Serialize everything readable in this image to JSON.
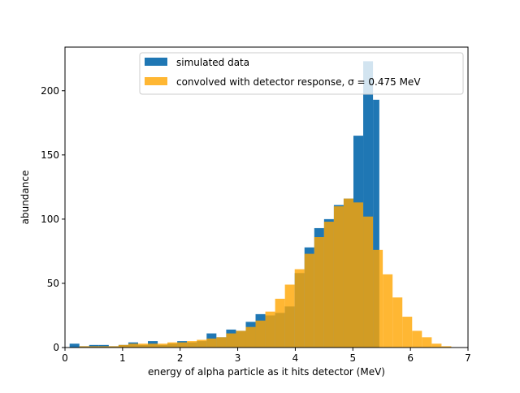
{
  "chart_data": {
    "type": "bar",
    "xlabel": "energy of alpha particle as it hits detector (MeV)",
    "ylabel": "abundance",
    "xlim": [
      0,
      7
    ],
    "ylim": [
      0,
      234
    ],
    "xticks": [
      0,
      1,
      2,
      3,
      4,
      5,
      6,
      7
    ],
    "yticks": [
      0,
      50,
      100,
      150,
      200
    ],
    "grid": false,
    "legend_position": "top-center",
    "legend": [
      {
        "label": "simulated data",
        "color": "#1f77b4"
      },
      {
        "label": "convolved with detector response, σ = 0.475 MeV",
        "color": "#ffa500"
      }
    ],
    "series": [
      {
        "name": "simulated data",
        "color": "#1f77b4",
        "opacity": 1.0,
        "bins": [
          {
            "x0": 0.08,
            "x1": 0.25,
            "y": 3
          },
          {
            "x0": 0.25,
            "x1": 0.42,
            "y": 1
          },
          {
            "x0": 0.42,
            "x1": 0.59,
            "y": 2
          },
          {
            "x0": 0.59,
            "x1": 0.76,
            "y": 2
          },
          {
            "x0": 0.76,
            "x1": 0.93,
            "y": 1
          },
          {
            "x0": 0.93,
            "x1": 1.1,
            "y": 2
          },
          {
            "x0": 1.1,
            "x1": 1.27,
            "y": 4
          },
          {
            "x0": 1.27,
            "x1": 1.44,
            "y": 2
          },
          {
            "x0": 1.44,
            "x1": 1.61,
            "y": 5
          },
          {
            "x0": 1.61,
            "x1": 1.78,
            "y": 2
          },
          {
            "x0": 1.78,
            "x1": 1.95,
            "y": 3
          },
          {
            "x0": 1.95,
            "x1": 2.12,
            "y": 5
          },
          {
            "x0": 2.12,
            "x1": 2.29,
            "y": 4
          },
          {
            "x0": 2.29,
            "x1": 2.46,
            "y": 5
          },
          {
            "x0": 2.46,
            "x1": 2.63,
            "y": 11
          },
          {
            "x0": 2.63,
            "x1": 2.8,
            "y": 8
          },
          {
            "x0": 2.8,
            "x1": 2.97,
            "y": 14
          },
          {
            "x0": 2.97,
            "x1": 3.14,
            "y": 13
          },
          {
            "x0": 3.14,
            "x1": 3.31,
            "y": 20
          },
          {
            "x0": 3.31,
            "x1": 3.48,
            "y": 26
          },
          {
            "x0": 3.48,
            "x1": 3.65,
            "y": 25
          },
          {
            "x0": 3.65,
            "x1": 3.82,
            "y": 27
          },
          {
            "x0": 3.82,
            "x1": 3.99,
            "y": 32
          },
          {
            "x0": 3.99,
            "x1": 4.16,
            "y": 58
          },
          {
            "x0": 4.16,
            "x1": 4.33,
            "y": 78
          },
          {
            "x0": 4.33,
            "x1": 4.5,
            "y": 93
          },
          {
            "x0": 4.5,
            "x1": 4.67,
            "y": 100
          },
          {
            "x0": 4.67,
            "x1": 4.84,
            "y": 111
          },
          {
            "x0": 4.84,
            "x1": 5.01,
            "y": 116
          },
          {
            "x0": 5.01,
            "x1": 5.18,
            "y": 165
          },
          {
            "x0": 5.18,
            "x1": 5.35,
            "y": 223
          },
          {
            "x0": 5.35,
            "x1": 5.46,
            "y": 193
          }
        ]
      },
      {
        "name": "convolved with detector response, σ = 0.475 MeV",
        "color": "#ffa500",
        "opacity": 0.8,
        "bins": [
          {
            "x0": 0.25,
            "x1": 0.42,
            "y": 1
          },
          {
            "x0": 0.42,
            "x1": 0.59,
            "y": 1
          },
          {
            "x0": 0.59,
            "x1": 0.76,
            "y": 1
          },
          {
            "x0": 0.76,
            "x1": 0.93,
            "y": 1
          },
          {
            "x0": 0.93,
            "x1": 1.1,
            "y": 2
          },
          {
            "x0": 1.1,
            "x1": 1.27,
            "y": 3
          },
          {
            "x0": 1.27,
            "x1": 1.44,
            "y": 3
          },
          {
            "x0": 1.44,
            "x1": 1.61,
            "y": 3
          },
          {
            "x0": 1.61,
            "x1": 1.78,
            "y": 3
          },
          {
            "x0": 1.78,
            "x1": 1.95,
            "y": 4
          },
          {
            "x0": 1.95,
            "x1": 2.12,
            "y": 4
          },
          {
            "x0": 2.12,
            "x1": 2.29,
            "y": 5
          },
          {
            "x0": 2.29,
            "x1": 2.46,
            "y": 6
          },
          {
            "x0": 2.46,
            "x1": 2.63,
            "y": 7
          },
          {
            "x0": 2.63,
            "x1": 2.8,
            "y": 8
          },
          {
            "x0": 2.8,
            "x1": 2.97,
            "y": 11
          },
          {
            "x0": 2.97,
            "x1": 3.14,
            "y": 13
          },
          {
            "x0": 3.14,
            "x1": 3.31,
            "y": 16
          },
          {
            "x0": 3.31,
            "x1": 3.48,
            "y": 21
          },
          {
            "x0": 3.48,
            "x1": 3.65,
            "y": 28
          },
          {
            "x0": 3.65,
            "x1": 3.82,
            "y": 38
          },
          {
            "x0": 3.82,
            "x1": 3.99,
            "y": 49
          },
          {
            "x0": 3.99,
            "x1": 4.16,
            "y": 61
          },
          {
            "x0": 4.16,
            "x1": 4.33,
            "y": 73
          },
          {
            "x0": 4.33,
            "x1": 4.5,
            "y": 86
          },
          {
            "x0": 4.5,
            "x1": 4.67,
            "y": 98
          },
          {
            "x0": 4.67,
            "x1": 4.84,
            "y": 110
          },
          {
            "x0": 4.84,
            "x1": 5.01,
            "y": 116
          },
          {
            "x0": 5.01,
            "x1": 5.18,
            "y": 113
          },
          {
            "x0": 5.18,
            "x1": 5.35,
            "y": 102
          },
          {
            "x0": 5.35,
            "x1": 5.52,
            "y": 76
          },
          {
            "x0": 5.52,
            "x1": 5.69,
            "y": 57
          },
          {
            "x0": 5.69,
            "x1": 5.86,
            "y": 39
          },
          {
            "x0": 5.86,
            "x1": 6.03,
            "y": 24
          },
          {
            "x0": 6.03,
            "x1": 6.2,
            "y": 13
          },
          {
            "x0": 6.2,
            "x1": 6.37,
            "y": 8
          },
          {
            "x0": 6.37,
            "x1": 6.54,
            "y": 3
          },
          {
            "x0": 6.54,
            "x1": 6.71,
            "y": 1
          }
        ]
      }
    ]
  }
}
